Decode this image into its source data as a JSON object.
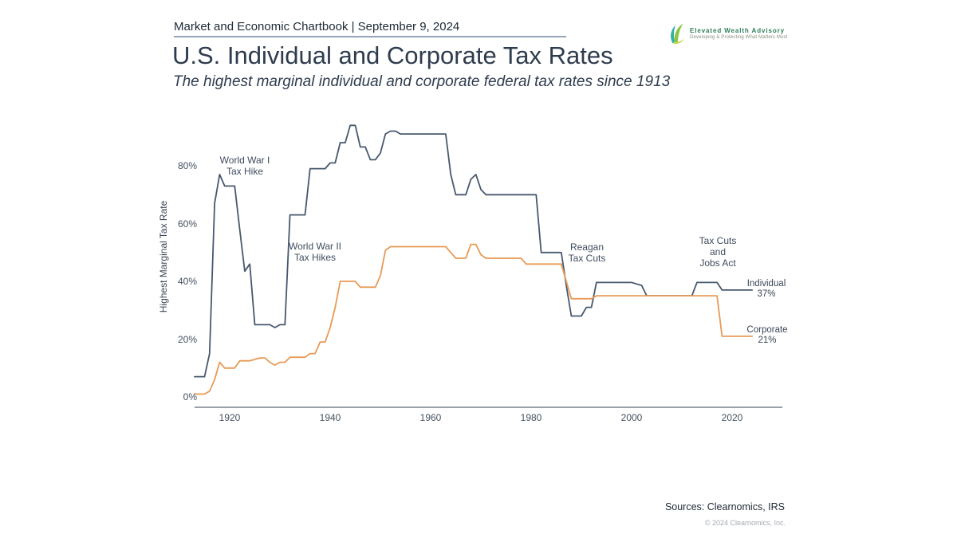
{
  "header": {
    "chartbook_title": "Market and Economic Chartbook | September 9, 2024"
  },
  "logo": {
    "name": "Elevated Wealth Advisory",
    "tagline": "Developing & Protecting What Matters Most"
  },
  "page": {
    "title": "U.S. Individual and Corporate Tax Rates",
    "subtitle": "The highest marginal individual and corporate federal tax rates since 1913"
  },
  "footer": {
    "sources": "Sources: Clearnomics, IRS",
    "copyright": "© 2024 Clearnomics, Inc."
  },
  "chart_data": {
    "type": "line",
    "title": "U.S. Individual and Corporate Tax Rates",
    "subtitle": "The highest marginal individual and corporate federal tax rates since 1913",
    "xlabel": "",
    "ylabel": "Highest Marginal Tax Rate",
    "xlim": [
      1913,
      2030
    ],
    "ylim": [
      0,
      100
    ],
    "grid": false,
    "legend_position": "right-end-labels",
    "x_ticks": [
      {
        "value": 1920,
        "label": "1920"
      },
      {
        "value": 1940,
        "label": "1940"
      },
      {
        "value": 1960,
        "label": "1960"
      },
      {
        "value": 1980,
        "label": "1980"
      },
      {
        "value": 2000,
        "label": "2000"
      },
      {
        "value": 2020,
        "label": "2020"
      }
    ],
    "y_ticks": [
      {
        "value": 0,
        "label": "0%"
      },
      {
        "value": 20,
        "label": "20%"
      },
      {
        "value": 40,
        "label": "40%"
      },
      {
        "value": 60,
        "label": "60%"
      },
      {
        "value": 80,
        "label": "80%"
      }
    ],
    "series": [
      {
        "name": "Individual",
        "color": "#47586e",
        "points": [
          [
            1913,
            7
          ],
          [
            1915,
            7
          ],
          [
            1916,
            15
          ],
          [
            1917,
            67
          ],
          [
            1918,
            77
          ],
          [
            1919,
            73
          ],
          [
            1921,
            73
          ],
          [
            1922,
            58
          ],
          [
            1923,
            43.5
          ],
          [
            1924,
            46
          ],
          [
            1925,
            25
          ],
          [
            1928,
            25
          ],
          [
            1929,
            24
          ],
          [
            1930,
            25
          ],
          [
            1931,
            25
          ],
          [
            1932,
            63
          ],
          [
            1935,
            63
          ],
          [
            1936,
            79
          ],
          [
            1939,
            79
          ],
          [
            1940,
            81
          ],
          [
            1941,
            81
          ],
          [
            1942,
            88
          ],
          [
            1943,
            88
          ],
          [
            1944,
            94
          ],
          [
            1945,
            94
          ],
          [
            1946,
            86.5
          ],
          [
            1947,
            86.5
          ],
          [
            1948,
            82.1
          ],
          [
            1949,
            82.1
          ],
          [
            1950,
            84.4
          ],
          [
            1951,
            91
          ],
          [
            1952,
            92
          ],
          [
            1953,
            92
          ],
          [
            1954,
            91
          ],
          [
            1963,
            91
          ],
          [
            1964,
            77
          ],
          [
            1965,
            70
          ],
          [
            1967,
            70
          ],
          [
            1968,
            75.3
          ],
          [
            1969,
            77
          ],
          [
            1970,
            71.8
          ],
          [
            1971,
            70
          ],
          [
            1981,
            70
          ],
          [
            1982,
            50
          ],
          [
            1986,
            50
          ],
          [
            1987,
            38.5
          ],
          [
            1988,
            28
          ],
          [
            1990,
            28
          ],
          [
            1991,
            31
          ],
          [
            1992,
            31
          ],
          [
            1993,
            39.6
          ],
          [
            2000,
            39.6
          ],
          [
            2001,
            39.1
          ],
          [
            2002,
            38.6
          ],
          [
            2003,
            35
          ],
          [
            2012,
            35
          ],
          [
            2013,
            39.6
          ],
          [
            2017,
            39.6
          ],
          [
            2018,
            37
          ],
          [
            2024,
            37
          ]
        ]
      },
      {
        "name": "Corporate",
        "color": "#e89a55",
        "points": [
          [
            1913,
            1
          ],
          [
            1915,
            1
          ],
          [
            1916,
            2
          ],
          [
            1917,
            6
          ],
          [
            1918,
            12
          ],
          [
            1919,
            10
          ],
          [
            1921,
            10
          ],
          [
            1922,
            12.5
          ],
          [
            1924,
            12.5
          ],
          [
            1925,
            13
          ],
          [
            1926,
            13.5
          ],
          [
            1927,
            13.5
          ],
          [
            1928,
            12
          ],
          [
            1929,
            11
          ],
          [
            1930,
            12
          ],
          [
            1931,
            12
          ],
          [
            1932,
            13.75
          ],
          [
            1935,
            13.75
          ],
          [
            1936,
            15
          ],
          [
            1937,
            15
          ],
          [
            1938,
            19
          ],
          [
            1939,
            19
          ],
          [
            1940,
            24
          ],
          [
            1941,
            31
          ],
          [
            1942,
            40
          ],
          [
            1945,
            40
          ],
          [
            1946,
            38
          ],
          [
            1949,
            38
          ],
          [
            1950,
            42
          ],
          [
            1951,
            50.75
          ],
          [
            1952,
            52
          ],
          [
            1963,
            52
          ],
          [
            1964,
            50
          ],
          [
            1965,
            48
          ],
          [
            1967,
            48
          ],
          [
            1968,
            52.8
          ],
          [
            1969,
            52.8
          ],
          [
            1970,
            49.2
          ],
          [
            1971,
            48
          ],
          [
            1978,
            48
          ],
          [
            1979,
            46
          ],
          [
            1986,
            46
          ],
          [
            1987,
            40
          ],
          [
            1988,
            34
          ],
          [
            1992,
            34
          ],
          [
            1993,
            35
          ],
          [
            2017,
            35
          ],
          [
            2018,
            21
          ],
          [
            2024,
            21
          ]
        ]
      }
    ],
    "annotations": [
      {
        "id": "ww1",
        "text": "World War I\nTax Hike"
      },
      {
        "id": "ww2",
        "text": "World War II\nTax Hikes"
      },
      {
        "id": "reagan",
        "text": "Reagan\nTax Cuts"
      },
      {
        "id": "tcja",
        "text": "Tax Cuts\nand\nJobs Act"
      }
    ],
    "end_labels": [
      {
        "series": "Individual",
        "name": "Individual",
        "value": "37%"
      },
      {
        "series": "Corporate",
        "name": "Corporate",
        "value": "21%"
      }
    ]
  }
}
